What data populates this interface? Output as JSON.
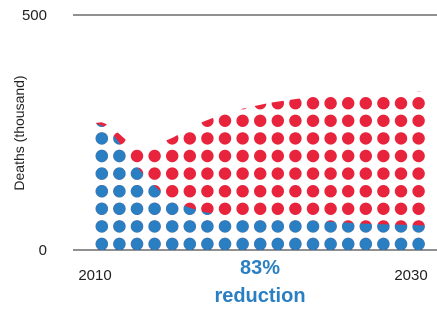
{
  "chart_data": {
    "type": "area",
    "ylabel": "Deaths (thousand)",
    "xlabel": "",
    "xlim": [
      2008.7,
      2031.5
    ],
    "ylim": [
      0,
      500
    ],
    "x_ticks": [
      "2010",
      "2030"
    ],
    "y_ticks": [
      "0",
      "500"
    ],
    "grid": "horizontal",
    "x": [
      2010,
      2010.5,
      2011,
      2012,
      2013,
      2014,
      2015,
      2016,
      2017,
      2018,
      2019,
      2020,
      2021,
      2022,
      2023,
      2024,
      2025,
      2026,
      2027,
      2028,
      2029,
      2030,
      2031
    ],
    "series": [
      {
        "color": "#e8243c",
        "values": [
          270,
          272,
          265,
          235,
          210,
          225,
          240,
          260,
          275,
          288,
          298,
          306,
          313,
          318,
          323,
          327,
          330,
          332,
          333,
          334,
          336,
          337,
          338
        ]
      },
      {
        "color": "#2a7fc2",
        "values": [
          270,
          265,
          255,
          210,
          165,
          130,
          105,
          90,
          80,
          75,
          72,
          70,
          68,
          66,
          64,
          62,
          60,
          58,
          56,
          55,
          54,
          53,
          52
        ]
      }
    ],
    "annotation": {
      "value": "83%",
      "label": "reduction",
      "color": "#2a7fc2"
    }
  }
}
